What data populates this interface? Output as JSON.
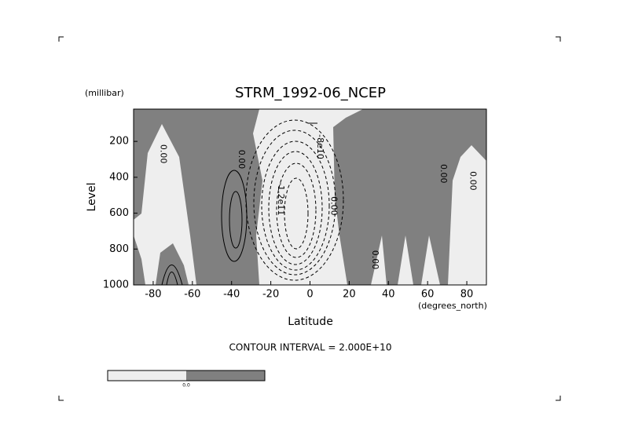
{
  "chart_data": {
    "type": "contour",
    "title": "STRM_1992-06_NCEP",
    "y_unit": "(millibar)",
    "y_label": "Level",
    "x_label": "Latitude",
    "x_unit": "(degrees_north)",
    "subtitle": "CONTOUR INTERVAL = 2.000E+10",
    "xlim": [
      -90,
      90
    ],
    "xticks": [
      -80,
      -60,
      -40,
      -20,
      0,
      20,
      40,
      60,
      80
    ],
    "ylim": [
      1000,
      20
    ],
    "yticks": [
      200,
      400,
      600,
      800,
      1000
    ],
    "contour_labels": [
      {
        "text": "0.00",
        "x": -75,
        "y": 270
      },
      {
        "text": "0.00",
        "x": -35,
        "y": 300
      },
      {
        "text": "-8e10",
        "x": 5,
        "y": 230
      },
      {
        "text": "-1.2e11",
        "x": -15,
        "y": 520
      },
      {
        "text": "0.00",
        "x": 12,
        "y": 560
      },
      {
        "text": "0.00",
        "x": 68,
        "y": 380
      },
      {
        "text": "0.00",
        "x": 83,
        "y": 420
      },
      {
        "text": "0.00",
        "x": 33,
        "y": 860
      }
    ],
    "colorbar_label": "0.0",
    "colors": {
      "negative": "#eeeeee",
      "positive": "#808080"
    }
  }
}
